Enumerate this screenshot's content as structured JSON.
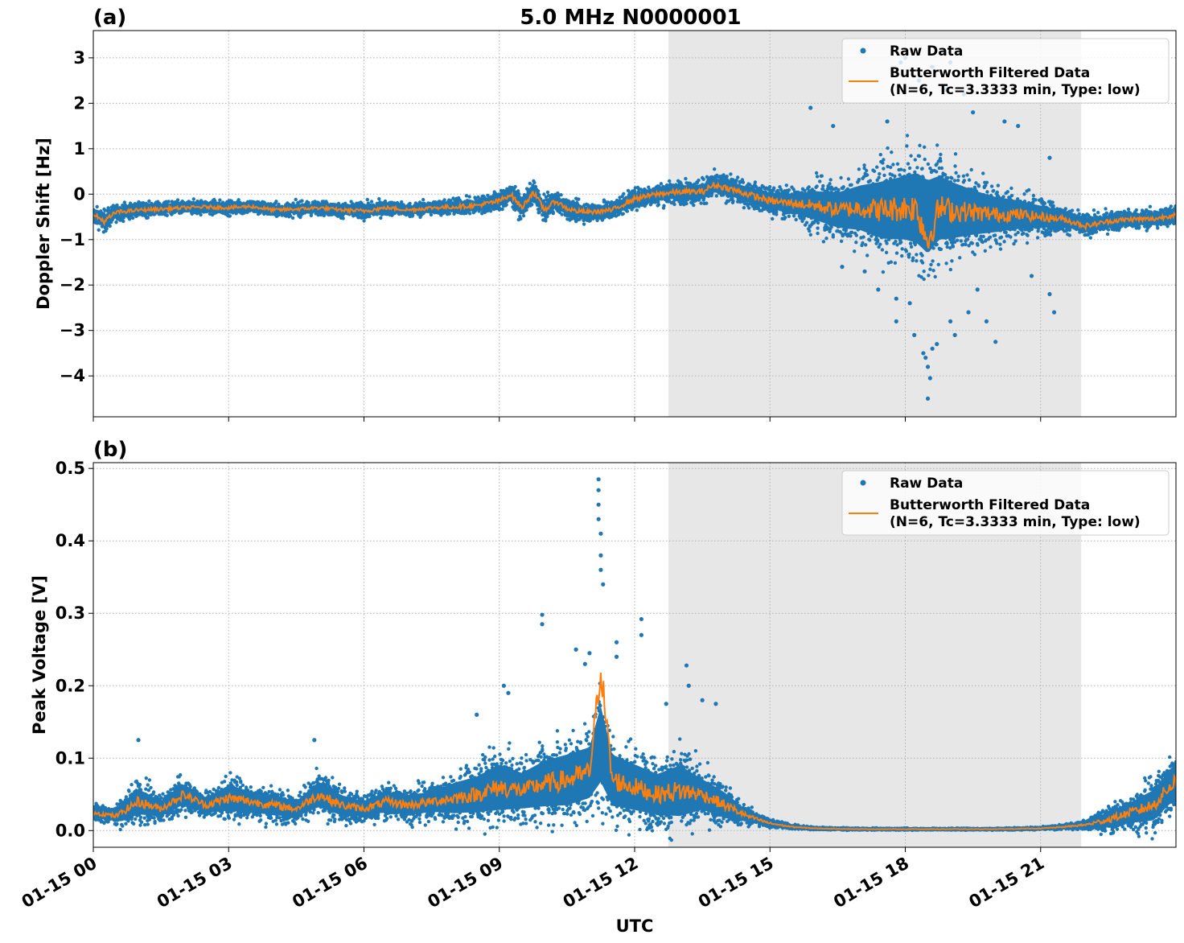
{
  "figure": {
    "title": "5.0 MHz N0000001",
    "xlabel": "UTC",
    "legend_raw": "Raw Data",
    "legend_filt_1": "Butterworth Filtered Data",
    "legend_filt_2": "(N=6, Tc=3.3333 min, Type: low)",
    "colors": {
      "raw": "#1f77b4",
      "filtered": "#ff7f0e",
      "shade": "#e7e7e7"
    }
  },
  "chart_data": [
    {
      "type": "scatter",
      "panel_label": "(a)",
      "title": "5.0 MHz N0000001",
      "xlabel": "",
      "ylabel": "Doppler Shift [Hz]",
      "x_unit": "hours UTC on 01-15",
      "xlim": [
        0,
        24
      ],
      "ylim": [
        -4.9,
        3.6
      ],
      "yticks": [
        3,
        2,
        1,
        0,
        -1,
        -2,
        -3,
        -4
      ],
      "ytick_labels": [
        "3",
        "2",
        "1",
        "0",
        "−1",
        "−2",
        "−3",
        "−4"
      ],
      "xticks": [
        0,
        3,
        6,
        9,
        12,
        15,
        18,
        21
      ],
      "shaded_interval": [
        12.75,
        21.9
      ],
      "grid": true,
      "legend": "upper-right",
      "series": [
        {
          "name": "Raw Data",
          "kind": "points",
          "x": [
            0,
            0.25,
            0.5,
            1,
            1.5,
            2,
            2.5,
            3,
            3.5,
            4,
            4.5,
            5,
            5.5,
            6,
            6.5,
            7,
            7.5,
            8,
            8.5,
            9,
            9.25,
            9.5,
            9.75,
            10,
            10.25,
            10.5,
            10.75,
            11,
            11.5,
            12,
            12.5,
            13,
            13.5,
            13.75,
            14,
            14.5,
            15,
            15.5,
            16,
            16.5,
            17,
            17.5,
            18,
            18.25,
            18.5,
            18.75,
            19,
            19.5,
            20,
            20.5,
            21,
            21.5,
            22,
            22.5,
            23,
            23.5,
            24
          ],
          "y": [
            -0.45,
            -0.6,
            -0.4,
            -0.35,
            -0.33,
            -0.3,
            -0.28,
            -0.3,
            -0.27,
            -0.35,
            -0.33,
            -0.3,
            -0.35,
            -0.37,
            -0.3,
            -0.35,
            -0.3,
            -0.28,
            -0.25,
            -0.15,
            0,
            -0.3,
            0.05,
            -0.35,
            -0.15,
            -0.32,
            -0.38,
            -0.4,
            -0.35,
            -0.1,
            0,
            0.05,
            0.05,
            0.2,
            0.15,
            0,
            -0.15,
            -0.2,
            -0.25,
            -0.35,
            -0.3,
            -0.35,
            -0.3,
            -0.3,
            -0.5,
            -0.3,
            -0.35,
            -0.4,
            -0.45,
            -0.45,
            -0.5,
            -0.55,
            -0.7,
            -0.6,
            -0.55,
            -0.55,
            -0.45
          ],
          "spread": [
            0.3,
            0.4,
            0.3,
            0.25,
            0.25,
            0.25,
            0.25,
            0.25,
            0.25,
            0.25,
            0.25,
            0.25,
            0.25,
            0.3,
            0.25,
            0.25,
            0.25,
            0.3,
            0.3,
            0.35,
            0.4,
            0.4,
            0.4,
            0.4,
            0.35,
            0.35,
            0.35,
            0.35,
            0.35,
            0.35,
            0.4,
            0.4,
            0.45,
            0.45,
            0.45,
            0.45,
            0.5,
            0.6,
            0.9,
            1.1,
            1.4,
            1.8,
            2.0,
            2.2,
            2.3,
            2.0,
            1.8,
            1.4,
            1.1,
            0.9,
            0.7,
            0.45,
            0.4,
            0.35,
            0.35,
            0.35,
            0.35
          ]
        },
        {
          "name": "Butterworth Filtered Data (N=6, Tc=3.3333 min, Type: low)",
          "kind": "line",
          "x": [
            0,
            0.25,
            0.5,
            1,
            1.5,
            2,
            2.5,
            3,
            3.5,
            4,
            4.5,
            5,
            5.5,
            6,
            6.5,
            7,
            7.5,
            8,
            8.5,
            9,
            9.25,
            9.5,
            9.75,
            10,
            10.25,
            10.5,
            10.75,
            11,
            11.5,
            12,
            12.5,
            13,
            13.5,
            13.75,
            14,
            14.5,
            15,
            15.5,
            16,
            16.5,
            17,
            17.5,
            18,
            18.25,
            18.5,
            18.75,
            19,
            19.5,
            20,
            20.5,
            21,
            21.5,
            22,
            22.5,
            23,
            23.5,
            24
          ],
          "y": [
            -0.45,
            -0.6,
            -0.4,
            -0.35,
            -0.33,
            -0.3,
            -0.28,
            -0.3,
            -0.27,
            -0.35,
            -0.33,
            -0.3,
            -0.35,
            -0.37,
            -0.3,
            -0.35,
            -0.3,
            -0.28,
            -0.25,
            -0.15,
            0,
            -0.3,
            0.05,
            -0.35,
            -0.15,
            -0.32,
            -0.38,
            -0.4,
            -0.35,
            -0.1,
            0,
            0.05,
            0.05,
            0.2,
            0.15,
            0,
            -0.15,
            -0.2,
            -0.25,
            -0.35,
            -0.3,
            -0.35,
            -0.3,
            -0.3,
            -1.05,
            -0.3,
            -0.35,
            -0.4,
            -0.45,
            -0.45,
            -0.5,
            -0.55,
            -0.7,
            -0.6,
            -0.55,
            -0.55,
            -0.45
          ]
        }
      ],
      "outliers": {
        "x": [
          15.9,
          16.4,
          16.6,
          17.1,
          17.4,
          17.6,
          17.8,
          17.9,
          18.0,
          18.1,
          18.2,
          18.3,
          18.4,
          18.5,
          18.5,
          18.55,
          18.6,
          18.7,
          18.8,
          18.9,
          19.0,
          19.1,
          19.2,
          19.3,
          19.4,
          19.5,
          19.8,
          20.0,
          20.2,
          20.5,
          20.8,
          21.2,
          21.3,
          21.2,
          18.45,
          18.6,
          19.0,
          18.2,
          17.8,
          19.6
        ],
        "y": [
          1.9,
          1.5,
          -1.6,
          -1.7,
          -2.1,
          1.6,
          -2.8,
          2.9,
          3.0,
          -2.4,
          -3.1,
          2.5,
          -3.5,
          -3.8,
          -4.5,
          -4.05,
          2.8,
          -3.3,
          3.1,
          2.3,
          -2.8,
          -3.1,
          3.1,
          2.2,
          -2.6,
          1.8,
          -2.8,
          -3.25,
          1.6,
          1.5,
          -1.8,
          0.8,
          -2.6,
          -2.2,
          -3.6,
          -3.4,
          2.9,
          2.6,
          -2.3,
          -2.1
        ]
      }
    },
    {
      "type": "scatter",
      "panel_label": "(b)",
      "title": "",
      "xlabel": "UTC",
      "ylabel": "Peak Voltage [V]",
      "x_unit": "hours UTC on 01-15",
      "xlim": [
        0,
        24
      ],
      "ylim": [
        -0.023,
        0.508
      ],
      "yticks": [
        0.0,
        0.1,
        0.2,
        0.3,
        0.4,
        0.5
      ],
      "ytick_labels": [
        "0.0",
        "0.1",
        "0.2",
        "0.3",
        "0.4",
        "0.5"
      ],
      "xticks": [
        0,
        3,
        6,
        9,
        12,
        15,
        18,
        21
      ],
      "xtick_labels": [
        "01-15 00",
        "01-15 03",
        "01-15 06",
        "01-15 09",
        "01-15 12",
        "01-15 15",
        "01-15 18",
        "01-15 21"
      ],
      "shaded_interval": [
        12.75,
        21.9
      ],
      "grid": true,
      "legend": "upper-right",
      "series": [
        {
          "name": "Raw Data",
          "kind": "points",
          "x": [
            0,
            0.5,
            1,
            1.5,
            2,
            2.5,
            3,
            3.5,
            4,
            4.5,
            5,
            5.5,
            6,
            6.5,
            7,
            7.5,
            8,
            8.5,
            9,
            9.5,
            10,
            10.5,
            11,
            11.25,
            11.5,
            12,
            12.5,
            13,
            13.5,
            14,
            14.5,
            15,
            15.5,
            16,
            17,
            18,
            19,
            20,
            21,
            21.5,
            22,
            22.5,
            23,
            23.5,
            24
          ],
          "y": [
            0.025,
            0.02,
            0.04,
            0.03,
            0.05,
            0.035,
            0.045,
            0.04,
            0.035,
            0.03,
            0.05,
            0.035,
            0.03,
            0.04,
            0.035,
            0.04,
            0.045,
            0.05,
            0.06,
            0.055,
            0.065,
            0.07,
            0.08,
            0.12,
            0.07,
            0.06,
            0.05,
            0.055,
            0.05,
            0.035,
            0.02,
            0.01,
            0.005,
            0.003,
            0.002,
            0.002,
            0.002,
            0.002,
            0.003,
            0.005,
            0.008,
            0.015,
            0.025,
            0.035,
            0.07
          ],
          "spread": [
            0.02,
            0.02,
            0.05,
            0.03,
            0.04,
            0.03,
            0.05,
            0.04,
            0.04,
            0.03,
            0.05,
            0.04,
            0.03,
            0.04,
            0.04,
            0.04,
            0.06,
            0.07,
            0.09,
            0.07,
            0.09,
            0.1,
            0.1,
            0.15,
            0.1,
            0.09,
            0.08,
            0.1,
            0.06,
            0.05,
            0.02,
            0.01,
            0.005,
            0.003,
            0.002,
            0.002,
            0.002,
            0.002,
            0.003,
            0.005,
            0.01,
            0.03,
            0.04,
            0.06,
            0.07
          ]
        },
        {
          "name": "Butterworth Filtered Data (N=6, Tc=3.3333 min, Type: low)",
          "kind": "line",
          "x": [
            0,
            0.5,
            1,
            1.5,
            2,
            2.5,
            3,
            3.5,
            4,
            4.5,
            5,
            5.5,
            6,
            6.5,
            7,
            7.5,
            8,
            8.5,
            9,
            9.5,
            10,
            10.5,
            11,
            11.25,
            11.5,
            12,
            12.5,
            13,
            13.5,
            14,
            14.5,
            15,
            15.5,
            16,
            17,
            18,
            19,
            20,
            21,
            21.5,
            22,
            22.5,
            23,
            23.5,
            24
          ],
          "y": [
            0.025,
            0.02,
            0.04,
            0.03,
            0.05,
            0.035,
            0.045,
            0.04,
            0.035,
            0.03,
            0.05,
            0.035,
            0.03,
            0.04,
            0.035,
            0.04,
            0.045,
            0.05,
            0.06,
            0.055,
            0.065,
            0.07,
            0.08,
            0.225,
            0.07,
            0.06,
            0.05,
            0.055,
            0.05,
            0.035,
            0.02,
            0.01,
            0.005,
            0.003,
            0.002,
            0.002,
            0.002,
            0.002,
            0.003,
            0.005,
            0.008,
            0.015,
            0.025,
            0.035,
            0.07
          ]
        }
      ],
      "outliers": {
        "x": [
          11.2,
          11.2,
          11.2,
          11.2,
          11.25,
          11.25,
          11.25,
          11.3,
          9.95,
          9.95,
          11.0,
          11.6,
          11.6,
          12.15,
          12.15,
          12.7,
          13.15,
          13.2,
          10.7,
          10.9,
          9.1,
          9.2,
          8.5,
          13.5,
          13.8,
          1.0,
          4.9
        ],
        "y": [
          0.485,
          0.47,
          0.45,
          0.43,
          0.41,
          0.38,
          0.36,
          0.34,
          0.298,
          0.285,
          0.245,
          0.26,
          0.24,
          0.292,
          0.27,
          0.175,
          0.228,
          0.2,
          0.25,
          0.23,
          0.2,
          0.19,
          0.16,
          0.18,
          0.175,
          0.125,
          0.125
        ]
      }
    }
  ]
}
